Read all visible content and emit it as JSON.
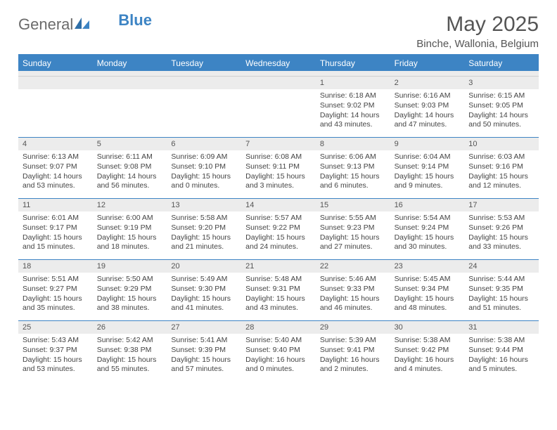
{
  "logo": {
    "text1": "General",
    "text2": "Blue"
  },
  "title": "May 2025",
  "location": "Binche, Wallonia, Belgium",
  "colors": {
    "accent": "#3d84c4",
    "header_text": "#555555",
    "row_band": "#ececec",
    "cell_text": "#444444",
    "background": "#ffffff"
  },
  "calendar": {
    "day_headers": [
      "Sunday",
      "Monday",
      "Tuesday",
      "Wednesday",
      "Thursday",
      "Friday",
      "Saturday"
    ],
    "weeks": [
      [
        {
          "empty": true
        },
        {
          "empty": true
        },
        {
          "empty": true
        },
        {
          "empty": true
        },
        {
          "num": "1",
          "sunrise": "Sunrise: 6:18 AM",
          "sunset": "Sunset: 9:02 PM",
          "day1": "Daylight: 14 hours",
          "day2": "and 43 minutes."
        },
        {
          "num": "2",
          "sunrise": "Sunrise: 6:16 AM",
          "sunset": "Sunset: 9:03 PM",
          "day1": "Daylight: 14 hours",
          "day2": "and 47 minutes."
        },
        {
          "num": "3",
          "sunrise": "Sunrise: 6:15 AM",
          "sunset": "Sunset: 9:05 PM",
          "day1": "Daylight: 14 hours",
          "day2": "and 50 minutes."
        }
      ],
      [
        {
          "num": "4",
          "sunrise": "Sunrise: 6:13 AM",
          "sunset": "Sunset: 9:07 PM",
          "day1": "Daylight: 14 hours",
          "day2": "and 53 minutes."
        },
        {
          "num": "5",
          "sunrise": "Sunrise: 6:11 AM",
          "sunset": "Sunset: 9:08 PM",
          "day1": "Daylight: 14 hours",
          "day2": "and 56 minutes."
        },
        {
          "num": "6",
          "sunrise": "Sunrise: 6:09 AM",
          "sunset": "Sunset: 9:10 PM",
          "day1": "Daylight: 15 hours",
          "day2": "and 0 minutes."
        },
        {
          "num": "7",
          "sunrise": "Sunrise: 6:08 AM",
          "sunset": "Sunset: 9:11 PM",
          "day1": "Daylight: 15 hours",
          "day2": "and 3 minutes."
        },
        {
          "num": "8",
          "sunrise": "Sunrise: 6:06 AM",
          "sunset": "Sunset: 9:13 PM",
          "day1": "Daylight: 15 hours",
          "day2": "and 6 minutes."
        },
        {
          "num": "9",
          "sunrise": "Sunrise: 6:04 AM",
          "sunset": "Sunset: 9:14 PM",
          "day1": "Daylight: 15 hours",
          "day2": "and 9 minutes."
        },
        {
          "num": "10",
          "sunrise": "Sunrise: 6:03 AM",
          "sunset": "Sunset: 9:16 PM",
          "day1": "Daylight: 15 hours",
          "day2": "and 12 minutes."
        }
      ],
      [
        {
          "num": "11",
          "sunrise": "Sunrise: 6:01 AM",
          "sunset": "Sunset: 9:17 PM",
          "day1": "Daylight: 15 hours",
          "day2": "and 15 minutes."
        },
        {
          "num": "12",
          "sunrise": "Sunrise: 6:00 AM",
          "sunset": "Sunset: 9:19 PM",
          "day1": "Daylight: 15 hours",
          "day2": "and 18 minutes."
        },
        {
          "num": "13",
          "sunrise": "Sunrise: 5:58 AM",
          "sunset": "Sunset: 9:20 PM",
          "day1": "Daylight: 15 hours",
          "day2": "and 21 minutes."
        },
        {
          "num": "14",
          "sunrise": "Sunrise: 5:57 AM",
          "sunset": "Sunset: 9:22 PM",
          "day1": "Daylight: 15 hours",
          "day2": "and 24 minutes."
        },
        {
          "num": "15",
          "sunrise": "Sunrise: 5:55 AM",
          "sunset": "Sunset: 9:23 PM",
          "day1": "Daylight: 15 hours",
          "day2": "and 27 minutes."
        },
        {
          "num": "16",
          "sunrise": "Sunrise: 5:54 AM",
          "sunset": "Sunset: 9:24 PM",
          "day1": "Daylight: 15 hours",
          "day2": "and 30 minutes."
        },
        {
          "num": "17",
          "sunrise": "Sunrise: 5:53 AM",
          "sunset": "Sunset: 9:26 PM",
          "day1": "Daylight: 15 hours",
          "day2": "and 33 minutes."
        }
      ],
      [
        {
          "num": "18",
          "sunrise": "Sunrise: 5:51 AM",
          "sunset": "Sunset: 9:27 PM",
          "day1": "Daylight: 15 hours",
          "day2": "and 35 minutes."
        },
        {
          "num": "19",
          "sunrise": "Sunrise: 5:50 AM",
          "sunset": "Sunset: 9:29 PM",
          "day1": "Daylight: 15 hours",
          "day2": "and 38 minutes."
        },
        {
          "num": "20",
          "sunrise": "Sunrise: 5:49 AM",
          "sunset": "Sunset: 9:30 PM",
          "day1": "Daylight: 15 hours",
          "day2": "and 41 minutes."
        },
        {
          "num": "21",
          "sunrise": "Sunrise: 5:48 AM",
          "sunset": "Sunset: 9:31 PM",
          "day1": "Daylight: 15 hours",
          "day2": "and 43 minutes."
        },
        {
          "num": "22",
          "sunrise": "Sunrise: 5:46 AM",
          "sunset": "Sunset: 9:33 PM",
          "day1": "Daylight: 15 hours",
          "day2": "and 46 minutes."
        },
        {
          "num": "23",
          "sunrise": "Sunrise: 5:45 AM",
          "sunset": "Sunset: 9:34 PM",
          "day1": "Daylight: 15 hours",
          "day2": "and 48 minutes."
        },
        {
          "num": "24",
          "sunrise": "Sunrise: 5:44 AM",
          "sunset": "Sunset: 9:35 PM",
          "day1": "Daylight: 15 hours",
          "day2": "and 51 minutes."
        }
      ],
      [
        {
          "num": "25",
          "sunrise": "Sunrise: 5:43 AM",
          "sunset": "Sunset: 9:37 PM",
          "day1": "Daylight: 15 hours",
          "day2": "and 53 minutes."
        },
        {
          "num": "26",
          "sunrise": "Sunrise: 5:42 AM",
          "sunset": "Sunset: 9:38 PM",
          "day1": "Daylight: 15 hours",
          "day2": "and 55 minutes."
        },
        {
          "num": "27",
          "sunrise": "Sunrise: 5:41 AM",
          "sunset": "Sunset: 9:39 PM",
          "day1": "Daylight: 15 hours",
          "day2": "and 57 minutes."
        },
        {
          "num": "28",
          "sunrise": "Sunrise: 5:40 AM",
          "sunset": "Sunset: 9:40 PM",
          "day1": "Daylight: 16 hours",
          "day2": "and 0 minutes."
        },
        {
          "num": "29",
          "sunrise": "Sunrise: 5:39 AM",
          "sunset": "Sunset: 9:41 PM",
          "day1": "Daylight: 16 hours",
          "day2": "and 2 minutes."
        },
        {
          "num": "30",
          "sunrise": "Sunrise: 5:38 AM",
          "sunset": "Sunset: 9:42 PM",
          "day1": "Daylight: 16 hours",
          "day2": "and 4 minutes."
        },
        {
          "num": "31",
          "sunrise": "Sunrise: 5:38 AM",
          "sunset": "Sunset: 9:44 PM",
          "day1": "Daylight: 16 hours",
          "day2": "and 5 minutes."
        }
      ]
    ]
  }
}
